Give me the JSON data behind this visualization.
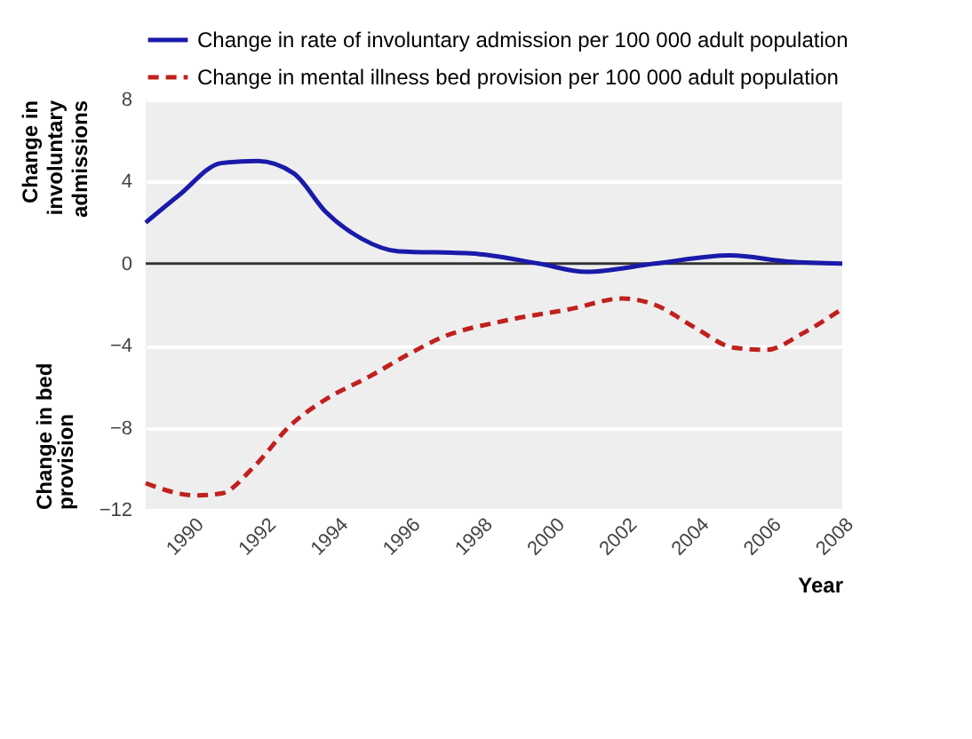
{
  "chart_data": {
    "type": "line",
    "xlabel": "Year",
    "ylabel": "Change in involuntary admissions",
    "annotations": [
      "Change in bed provision"
    ],
    "xlim": [
      1988.7,
      2008
    ],
    "xticks": [
      1990,
      1992,
      1994,
      1996,
      1998,
      2000,
      2002,
      2004,
      2006,
      2008
    ],
    "ylim": [
      -12,
      8
    ],
    "yticks": [
      -12,
      -8,
      -4,
      0,
      4,
      8
    ],
    "grid": "y",
    "legend": "top",
    "ref_lines": [
      {
        "axis": "y",
        "value": 0,
        "color": "#333333"
      }
    ],
    "series": [
      {
        "name": "Change in rate of involuntary admission per 100 000 adult population",
        "color": "#1a1aaa",
        "line_style": "solid",
        "x": [
          1988.7,
          1989.6,
          1990.8,
          1991.8,
          1992.8,
          1993.7,
          1994.7,
          1995.7,
          1997.7,
          1999.6,
          2000.9,
          2002.8,
          2004.9,
          2006.5,
          2008
        ],
        "values": [
          2.0,
          3.3,
          4.9,
          5.0,
          4.4,
          2.5,
          1.2,
          0.6,
          0.5,
          0,
          -0.4,
          0,
          0.4,
          0.1,
          0
        ]
      },
      {
        "name": "Change in mental illness bed provision per 100 000 adult population",
        "color": "#c0201e",
        "line_style": "dashed",
        "x": [
          1988.7,
          1990.1,
          1990.8,
          1991.7,
          1992.7,
          1993.7,
          1994.9,
          1996.0,
          1996.9,
          1998.6,
          2000.5,
          2001.9,
          2002.8,
          2003.9,
          2005.0,
          2005.9,
          2006.9,
          2008
        ],
        "values": [
          -10.7,
          -11.3,
          -11.2,
          -9.9,
          -7.9,
          -6.6,
          -5.5,
          -4.4,
          -3.6,
          -2.8,
          -2.2,
          -1.7,
          -2.0,
          -3.1,
          -4.1,
          -4.2,
          -3.4,
          -2.2
        ]
      }
    ]
  }
}
